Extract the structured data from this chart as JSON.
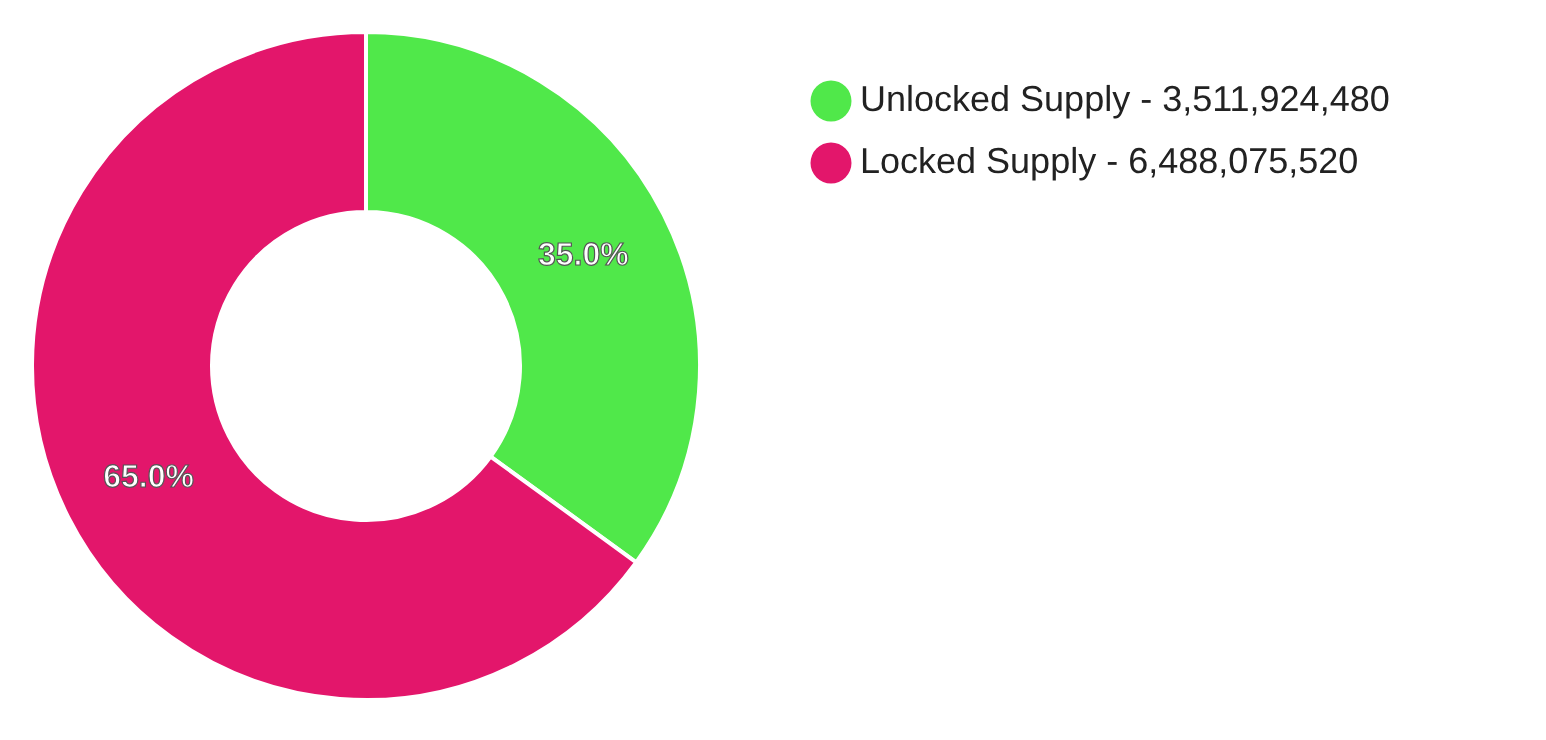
{
  "chart_data": {
    "type": "donut",
    "categories": [
      "Unlocked Supply - 3,511,924,480",
      "Locked Supply - 6,488,075,520"
    ],
    "values": [
      35.0,
      65.0
    ],
    "value_labels": [
      "35.0%",
      "65.0%"
    ],
    "colors": [
      "#50e84a",
      "#e3166b"
    ],
    "legend": "right"
  }
}
